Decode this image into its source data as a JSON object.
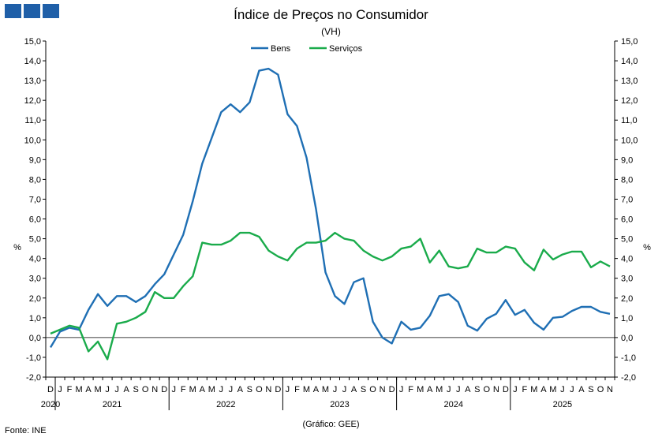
{
  "logo": {
    "icon": "brand-squares-icon",
    "color": "#1f5fa8"
  },
  "chart_data": {
    "type": "line",
    "title": "Índice de Preços no Consumidor",
    "subtitle": "(VH)",
    "ylabel_left": "%",
    "ylabel_right": "%",
    "ylim": [
      -2,
      15
    ],
    "yticks": [
      "-2,0",
      "-1,0",
      "0,0",
      "1,0",
      "2,0",
      "3,0",
      "4,0",
      "5,0",
      "6,0",
      "7,0",
      "8,0",
      "9,0",
      "10,0",
      "11,0",
      "12,0",
      "13,0",
      "14,0",
      "15,0"
    ],
    "month_labels": [
      "D",
      "J",
      "F",
      "M",
      "A",
      "M",
      "J",
      "J",
      "A",
      "S",
      "O",
      "N",
      "D",
      "J",
      "F",
      "M",
      "A",
      "M",
      "J",
      "J",
      "A",
      "S",
      "O",
      "N",
      "D",
      "J",
      "F",
      "M",
      "A",
      "M",
      "J",
      "J",
      "A",
      "S",
      "O",
      "N",
      "D",
      "J",
      "F",
      "M",
      "A",
      "M",
      "J",
      "J",
      "A",
      "S",
      "O",
      "N",
      "D",
      "J",
      "F",
      "M",
      "A",
      "M",
      "J",
      "J",
      "A",
      "S",
      "O",
      "N"
    ],
    "year_labels": [
      "2020",
      "2021",
      "2022",
      "2023",
      "2024",
      "2025"
    ],
    "source": "Fonte: INE",
    "credit": "(Gráfico: GEE)",
    "legend_position": "top-center",
    "series": [
      {
        "name": "Bens",
        "color": "#1f6fb4",
        "values": [
          -0.5,
          0.3,
          0.5,
          0.4,
          1.4,
          2.2,
          1.6,
          2.1,
          2.1,
          1.8,
          2.1,
          2.7,
          3.2,
          4.2,
          5.2,
          6.9,
          8.8,
          10.1,
          11.4,
          11.8,
          11.4,
          11.9,
          13.5,
          13.6,
          13.3,
          11.3,
          10.7,
          9.1,
          6.5,
          3.3,
          2.1,
          1.7,
          2.8,
          3.0,
          0.8,
          0.0,
          -0.3,
          0.8,
          0.4,
          0.5,
          1.1,
          2.1,
          2.2,
          1.8,
          0.6,
          0.35,
          0.95,
          1.2,
          1.9,
          1.15,
          1.4,
          0.75,
          0.4,
          1.0,
          1.05,
          1.35,
          1.55,
          1.55,
          1.3,
          1.2
        ]
      },
      {
        "name": "Serviços",
        "color": "#1aab4b",
        "values": [
          0.2,
          0.4,
          0.6,
          0.5,
          -0.7,
          -0.2,
          -1.1,
          0.7,
          0.8,
          1.0,
          1.3,
          2.3,
          2.0,
          2.0,
          2.6,
          3.1,
          4.8,
          4.7,
          4.7,
          4.9,
          5.3,
          5.3,
          5.1,
          4.4,
          4.1,
          3.9,
          4.5,
          4.8,
          4.8,
          4.9,
          5.3,
          5.0,
          4.9,
          4.4,
          4.1,
          3.9,
          4.1,
          4.5,
          4.6,
          5.0,
          3.8,
          4.4,
          3.6,
          3.5,
          3.6,
          4.5,
          4.3,
          4.3,
          4.6,
          4.5,
          3.8,
          3.4,
          4.45,
          3.95,
          4.2,
          4.35,
          4.35,
          3.55,
          3.85,
          3.6
        ]
      }
    ]
  }
}
